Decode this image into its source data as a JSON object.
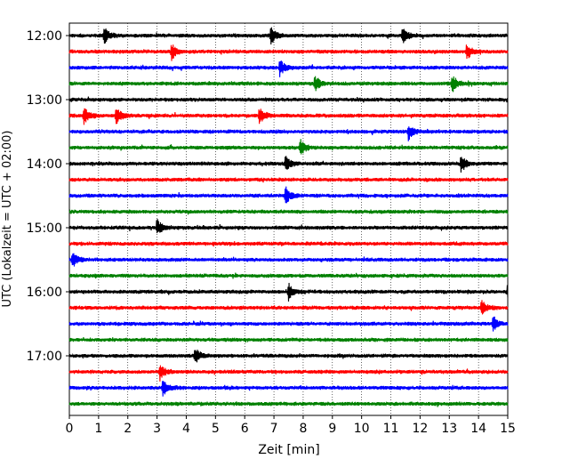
{
  "chart_data": {
    "type": "line",
    "title": "",
    "xlabel": "Zeit  [min]",
    "ylabel": "UTC (Lokalzeit = UTC + 02:00)",
    "xlim": [
      0,
      15
    ],
    "x_ticks": [
      "0",
      "1",
      "2",
      "3",
      "4",
      "5",
      "6",
      "7",
      "8",
      "9",
      "10",
      "11",
      "12",
      "13",
      "14",
      "15"
    ],
    "y_ticks": [
      "12:00",
      "13:00",
      "14:00",
      "15:00",
      "16:00",
      "17:00"
    ],
    "grid": "vertical dotted at each minute",
    "legend": "none",
    "colors": [
      "#000000",
      "#ff0000",
      "#0000ff",
      "#008000"
    ],
    "traces": [
      {
        "start": "12:00",
        "color": "#000000",
        "events": [
          1.2,
          6.9,
          11.4
        ]
      },
      {
        "start": "12:15",
        "color": "#ff0000",
        "events": [
          3.5,
          13.6
        ]
      },
      {
        "start": "12:30",
        "color": "#0000ff",
        "events": [
          7.2
        ]
      },
      {
        "start": "12:45",
        "color": "#008000",
        "events": [
          8.4,
          13.1
        ]
      },
      {
        "start": "13:00",
        "color": "#000000",
        "events": []
      },
      {
        "start": "13:15",
        "color": "#ff0000",
        "events": [
          0.5,
          1.6,
          6.5
        ]
      },
      {
        "start": "13:30",
        "color": "#0000ff",
        "events": [
          11.6
        ]
      },
      {
        "start": "13:45",
        "color": "#008000",
        "events": [
          7.9
        ]
      },
      {
        "start": "14:00",
        "color": "#000000",
        "events": [
          7.4,
          13.4
        ]
      },
      {
        "start": "14:15",
        "color": "#ff0000",
        "events": []
      },
      {
        "start": "14:30",
        "color": "#0000ff",
        "events": [
          7.4
        ]
      },
      {
        "start": "14:45",
        "color": "#008000",
        "events": []
      },
      {
        "start": "15:00",
        "color": "#000000",
        "events": [
          3.0
        ]
      },
      {
        "start": "15:15",
        "color": "#ff0000",
        "events": []
      },
      {
        "start": "15:30",
        "color": "#0000ff",
        "events": [
          0.1
        ]
      },
      {
        "start": "15:45",
        "color": "#008000",
        "events": []
      },
      {
        "start": "16:00",
        "color": "#000000",
        "events": [
          7.5,
          15.0
        ]
      },
      {
        "start": "16:15",
        "color": "#ff0000",
        "events": [
          14.1
        ]
      },
      {
        "start": "16:30",
        "color": "#0000ff",
        "events": [
          14.5
        ]
      },
      {
        "start": "16:45",
        "color": "#008000",
        "events": []
      },
      {
        "start": "17:00",
        "color": "#000000",
        "events": [
          4.3
        ]
      },
      {
        "start": "17:15",
        "color": "#ff0000",
        "events": [
          3.1
        ]
      },
      {
        "start": "17:30",
        "color": "#0000ff",
        "events": [
          3.2
        ]
      },
      {
        "start": "17:45",
        "color": "#008000",
        "events": []
      }
    ]
  }
}
